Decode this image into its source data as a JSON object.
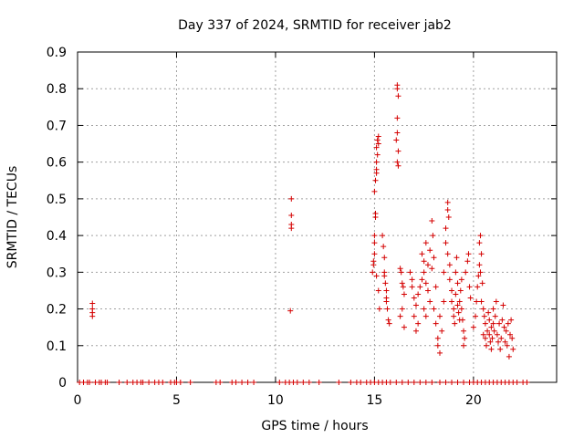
{
  "chart_data": {
    "type": "scatter",
    "title": "Day 337 of 2024, SRMTID for receiver jab2",
    "xlabel": "GPS time / hours",
    "ylabel": "SRMTID / TECUs",
    "xlim": [
      0,
      24.2
    ],
    "ylim": [
      0,
      0.9
    ],
    "xticks": [
      0,
      5,
      10,
      15,
      20
    ],
    "yticks": [
      0,
      0.1,
      0.2,
      0.3,
      0.4,
      0.5,
      0.6,
      0.7,
      0.8,
      0.9
    ],
    "ytick_labels": [
      "0",
      "0.1",
      "0.2",
      "0.3",
      "0.4",
      "0.5",
      "0.6",
      "0.7",
      "0.8",
      "0.9"
    ],
    "grid": true,
    "color": "#d40000",
    "zero_x": [
      0.1,
      0.3,
      0.5,
      0.6,
      0.9,
      1.1,
      1.2,
      1.4,
      1.5,
      2.1,
      2.5,
      2.8,
      3.0,
      3.2,
      3.3,
      3.6,
      3.9,
      4.1,
      4.3,
      4.7,
      4.9,
      5.0,
      5.2,
      5.7,
      7.0,
      7.2,
      7.8,
      8.0,
      8.3,
      8.6,
      8.9,
      10.2,
      10.5,
      10.7,
      10.9,
      11.1,
      11.4,
      11.7,
      12.2,
      13.2,
      13.8,
      14.1,
      14.3,
      14.6,
      14.8,
      15.0,
      15.2,
      15.4,
      15.6,
      15.8,
      16.1,
      16.4,
      16.7,
      17.0,
      17.3,
      17.6,
      17.9,
      18.3,
      18.6,
      18.9,
      19.2,
      19.5,
      19.8,
      20.0,
      20.2,
      20.4,
      20.6,
      20.8,
      21.0,
      21.2,
      21.4,
      21.6,
      21.8,
      22.0,
      22.2,
      22.5,
      22.7
    ],
    "points": [
      [
        0.75,
        0.215
      ],
      [
        0.75,
        0.2
      ],
      [
        0.75,
        0.19
      ],
      [
        0.75,
        0.18
      ],
      [
        10.8,
        0.5
      ],
      [
        10.8,
        0.455
      ],
      [
        10.8,
        0.43
      ],
      [
        10.8,
        0.42
      ],
      [
        10.75,
        0.195
      ],
      [
        14.9,
        0.3
      ],
      [
        14.95,
        0.32
      ],
      [
        15.0,
        0.35
      ],
      [
        15.0,
        0.4
      ],
      [
        15.05,
        0.45
      ],
      [
        15.0,
        0.52
      ],
      [
        15.05,
        0.55
      ],
      [
        15.1,
        0.58
      ],
      [
        15.1,
        0.6
      ],
      [
        15.15,
        0.62
      ],
      [
        15.1,
        0.64
      ],
      [
        15.15,
        0.66
      ],
      [
        15.2,
        0.67
      ],
      [
        15.2,
        0.65
      ],
      [
        15.1,
        0.57
      ],
      [
        15.05,
        0.46
      ],
      [
        15.0,
        0.38
      ],
      [
        14.95,
        0.33
      ],
      [
        15.1,
        0.29
      ],
      [
        15.2,
        0.25
      ],
      [
        15.25,
        0.2
      ],
      [
        15.4,
        0.4
      ],
      [
        15.45,
        0.37
      ],
      [
        15.5,
        0.34
      ],
      [
        15.5,
        0.3
      ],
      [
        15.55,
        0.27
      ],
      [
        15.6,
        0.25
      ],
      [
        15.6,
        0.22
      ],
      [
        15.65,
        0.2
      ],
      [
        15.7,
        0.17
      ],
      [
        15.75,
        0.16
      ],
      [
        15.5,
        0.29
      ],
      [
        15.6,
        0.23
      ],
      [
        16.15,
        0.81
      ],
      [
        16.15,
        0.8
      ],
      [
        16.2,
        0.78
      ],
      [
        16.15,
        0.72
      ],
      [
        16.15,
        0.68
      ],
      [
        16.1,
        0.66
      ],
      [
        16.2,
        0.63
      ],
      [
        16.15,
        0.6
      ],
      [
        16.2,
        0.59
      ],
      [
        16.3,
        0.31
      ],
      [
        16.4,
        0.27
      ],
      [
        16.5,
        0.24
      ],
      [
        16.4,
        0.2
      ],
      [
        16.3,
        0.18
      ],
      [
        16.5,
        0.15
      ],
      [
        16.35,
        0.3
      ],
      [
        16.45,
        0.26
      ],
      [
        16.8,
        0.3
      ],
      [
        16.9,
        0.26
      ],
      [
        17.0,
        0.23
      ],
      [
        17.1,
        0.21
      ],
      [
        17.0,
        0.18
      ],
      [
        17.2,
        0.16
      ],
      [
        17.1,
        0.14
      ],
      [
        16.9,
        0.28
      ],
      [
        17.2,
        0.24
      ],
      [
        17.3,
        0.26
      ],
      [
        17.4,
        0.35
      ],
      [
        17.5,
        0.33
      ],
      [
        17.5,
        0.3
      ],
      [
        17.6,
        0.38
      ],
      [
        17.6,
        0.27
      ],
      [
        17.7,
        0.32
      ],
      [
        17.7,
        0.25
      ],
      [
        17.8,
        0.36
      ],
      [
        17.8,
        0.22
      ],
      [
        17.5,
        0.2
      ],
      [
        17.6,
        0.18
      ],
      [
        17.4,
        0.28
      ],
      [
        17.9,
        0.31
      ],
      [
        17.9,
        0.44
      ],
      [
        17.95,
        0.4
      ],
      [
        18.0,
        0.34
      ],
      [
        18.0,
        0.2
      ],
      [
        18.1,
        0.26
      ],
      [
        18.1,
        0.16
      ],
      [
        18.2,
        0.12
      ],
      [
        18.3,
        0.08
      ],
      [
        18.2,
        0.1
      ],
      [
        18.4,
        0.14
      ],
      [
        18.3,
        0.18
      ],
      [
        18.5,
        0.22
      ],
      [
        18.5,
        0.3
      ],
      [
        18.6,
        0.42
      ],
      [
        18.6,
        0.38
      ],
      [
        18.7,
        0.47
      ],
      [
        18.7,
        0.49
      ],
      [
        18.75,
        0.45
      ],
      [
        18.7,
        0.35
      ],
      [
        18.8,
        0.32
      ],
      [
        18.8,
        0.28
      ],
      [
        18.9,
        0.25
      ],
      [
        18.9,
        0.22
      ],
      [
        19.0,
        0.2
      ],
      [
        19.0,
        0.18
      ],
      [
        19.05,
        0.16
      ],
      [
        19.1,
        0.24
      ],
      [
        19.1,
        0.3
      ],
      [
        19.15,
        0.34
      ],
      [
        19.2,
        0.27
      ],
      [
        19.2,
        0.21
      ],
      [
        19.25,
        0.19
      ],
      [
        19.3,
        0.17
      ],
      [
        19.3,
        0.22
      ],
      [
        19.35,
        0.25
      ],
      [
        19.4,
        0.2
      ],
      [
        19.45,
        0.17
      ],
      [
        19.5,
        0.14
      ],
      [
        19.55,
        0.12
      ],
      [
        19.5,
        0.1
      ],
      [
        19.4,
        0.28
      ],
      [
        19.6,
        0.3
      ],
      [
        19.7,
        0.33
      ],
      [
        19.75,
        0.35
      ],
      [
        19.8,
        0.26
      ],
      [
        19.85,
        0.23
      ],
      [
        20.0,
        0.15
      ],
      [
        20.1,
        0.18
      ],
      [
        20.15,
        0.22
      ],
      [
        20.2,
        0.26
      ],
      [
        20.25,
        0.29
      ],
      [
        20.3,
        0.32
      ],
      [
        20.35,
        0.3
      ],
      [
        20.3,
        0.38
      ],
      [
        20.35,
        0.4
      ],
      [
        20.4,
        0.35
      ],
      [
        20.45,
        0.27
      ],
      [
        20.4,
        0.22
      ],
      [
        20.5,
        0.2
      ],
      [
        20.5,
        0.13
      ],
      [
        20.55,
        0.18
      ],
      [
        20.6,
        0.16
      ],
      [
        20.6,
        0.12
      ],
      [
        20.65,
        0.1
      ],
      [
        20.7,
        0.14
      ],
      [
        20.75,
        0.19
      ],
      [
        20.8,
        0.17
      ],
      [
        20.8,
        0.13
      ],
      [
        20.85,
        0.11
      ],
      [
        20.9,
        0.15
      ],
      [
        20.9,
        0.09
      ],
      [
        20.95,
        0.12
      ],
      [
        21.0,
        0.16
      ],
      [
        21.0,
        0.2
      ],
      [
        21.05,
        0.14
      ],
      [
        21.1,
        0.18
      ],
      [
        21.15,
        0.22
      ],
      [
        21.2,
        0.13
      ],
      [
        21.25,
        0.11
      ],
      [
        21.3,
        0.16
      ],
      [
        21.35,
        0.09
      ],
      [
        21.4,
        0.12
      ],
      [
        21.45,
        0.17
      ],
      [
        21.5,
        0.21
      ],
      [
        21.55,
        0.15
      ],
      [
        21.6,
        0.11
      ],
      [
        21.65,
        0.14
      ],
      [
        21.7,
        0.1
      ],
      [
        21.75,
        0.16
      ],
      [
        21.8,
        0.07
      ],
      [
        21.85,
        0.13
      ],
      [
        21.9,
        0.17
      ],
      [
        21.95,
        0.12
      ],
      [
        22.0,
        0.09
      ]
    ]
  }
}
